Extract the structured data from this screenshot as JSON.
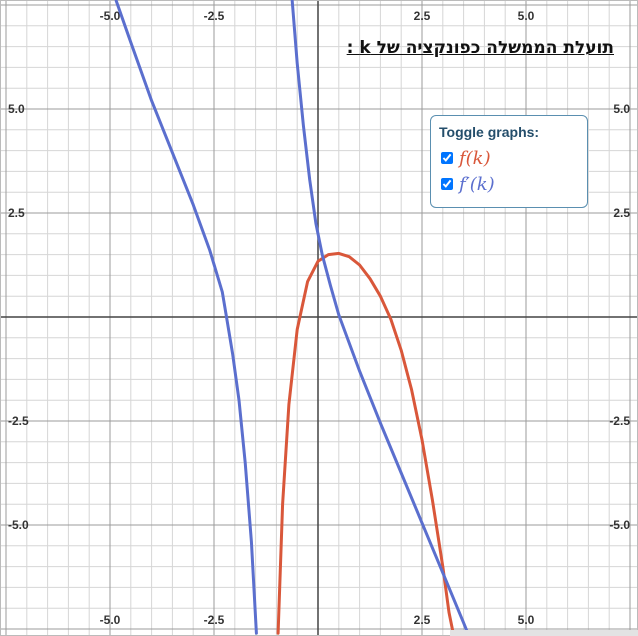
{
  "title": "תועלת הממשלה כפונקציה של k :",
  "legend": {
    "title": "Toggle graphs:",
    "items": [
      {
        "label": "f(k)",
        "checked": true,
        "color": "#d9573a"
      },
      {
        "label": "f′(k)",
        "checked": true,
        "color": "#5b6fce"
      }
    ]
  },
  "chart_data": {
    "type": "line",
    "xlim": [
      -7.6,
      7.6
    ],
    "ylim": [
      -7.6,
      7.6
    ],
    "grid": true,
    "x_ticks": [
      "-5.0",
      "-2.5",
      "2.5",
      "5.0"
    ],
    "y_ticks": [
      "5.0",
      "2.5",
      "-2.5",
      "-5.0"
    ],
    "series": [
      {
        "name": "f(k)",
        "color": "#d9573a",
        "points": [
          [
            -0.96,
            -7.6
          ],
          [
            -0.85,
            -4.5
          ],
          [
            -0.7,
            -2.1
          ],
          [
            -0.5,
            -0.3
          ],
          [
            -0.25,
            0.85
          ],
          [
            0,
            1.34
          ],
          [
            0.25,
            1.5
          ],
          [
            0.5,
            1.53
          ],
          [
            0.75,
            1.45
          ],
          [
            1.0,
            1.25
          ],
          [
            1.25,
            0.92
          ],
          [
            1.5,
            0.5
          ],
          [
            1.75,
            -0.05
          ],
          [
            2.0,
            -0.8
          ],
          [
            2.25,
            -1.75
          ],
          [
            2.5,
            -2.95
          ],
          [
            2.75,
            -4.4
          ],
          [
            3.0,
            -6.0
          ],
          [
            3.15,
            -7.1
          ],
          [
            3.25,
            -7.6
          ]
        ]
      },
      {
        "name": "f′(k)",
        "color": "#5b6fce",
        "segments": [
          [
            [
              -4.85,
              7.6
            ],
            [
              -4.5,
              6.6
            ],
            [
              -4.0,
              5.2
            ],
            [
              -3.5,
              3.95
            ],
            [
              -3.0,
              2.7
            ],
            [
              -2.6,
              1.6
            ],
            [
              -2.3,
              0.6
            ],
            [
              -2.2,
              0
            ],
            [
              -2.05,
              -0.9
            ],
            [
              -1.9,
              -2.0
            ],
            [
              -1.75,
              -3.5
            ],
            [
              -1.6,
              -5.4
            ],
            [
              -1.48,
              -7.6
            ]
          ],
          [
            [
              -0.62,
              7.6
            ],
            [
              -0.5,
              6.1
            ],
            [
              -0.35,
              4.6
            ],
            [
              -0.2,
              3.3
            ],
            [
              -0.05,
              2.25
            ],
            [
              0.1,
              1.5
            ],
            [
              0.3,
              0.75
            ],
            [
              0.5,
              0.05
            ],
            [
              1.0,
              -1.3
            ],
            [
              1.5,
              -2.55
            ],
            [
              2.0,
              -3.75
            ],
            [
              2.5,
              -4.95
            ],
            [
              3.0,
              -6.15
            ],
            [
              3.5,
              -7.35
            ],
            [
              3.6,
              -7.6
            ]
          ]
        ]
      }
    ]
  }
}
